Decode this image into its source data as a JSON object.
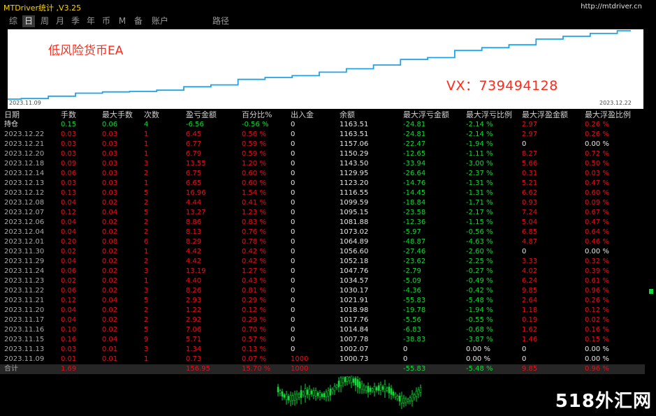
{
  "app": {
    "title": "MTDriver统计 ,V3.25",
    "url": "http://mtdriver.cn"
  },
  "periods": [
    "综",
    "日",
    "周",
    "月",
    "季",
    "年",
    "币",
    "M",
    "备",
    "账户",
    "路径"
  ],
  "active_period": "日",
  "chart": {
    "title": "低风险货币EA",
    "contact": "VX：739494128",
    "start_date": "2023.11.09",
    "end_date": "2023.12.22",
    "line_color": "#1fa3e8",
    "equity_series": [
      1000.73,
      1002.07,
      1007.78,
      1014.84,
      1017.76,
      1018.98,
      1021.91,
      1030.17,
      1034.57,
      1047.76,
      1052.18,
      1056.6,
      1064.89,
      1073.02,
      1081.88,
      1095.15,
      1099.59,
      1116.55,
      1123.2,
      1129.95,
      1143.5,
      1150.29,
      1157.06,
      1163.51
    ]
  },
  "table": {
    "headers": [
      "日期",
      "手数",
      "最大手数",
      "次数",
      "盈亏金额",
      "百分比%",
      "出入金",
      "余额",
      "最大浮亏金额",
      "最大浮亏比例",
      "最大浮盈金额",
      "最大浮盈比例"
    ],
    "hold": [
      "持仓",
      "0.15",
      "0.06",
      "4",
      "-6.56",
      "-0.56 %",
      "0",
      "1163.51",
      "-24.81",
      "-2.14 %",
      "2.97",
      "0.26 %"
    ],
    "rows": [
      [
        "2023.12.22",
        "0.03",
        "0.03",
        "1",
        "6.45",
        "0.56 %",
        "0",
        "1163.51",
        "-24.81",
        "-2.14 %",
        "2.97",
        "0.26 %"
      ],
      [
        "2023.12.21",
        "0.03",
        "0.03",
        "1",
        "6.77",
        "0.59 %",
        "0",
        "1157.06",
        "-22.47",
        "-1.94 %",
        "0",
        "0.00 %"
      ],
      [
        "2023.12.20",
        "0.03",
        "0.03",
        "1",
        "6.79",
        "0.59 %",
        "0",
        "1150.29",
        "-12.65",
        "-1.11 %",
        "8.27",
        "0.72 %"
      ],
      [
        "2023.12.18",
        "0.09",
        "0.03",
        "3",
        "13.55",
        "1.20 %",
        "0",
        "1143.50",
        "-33.94",
        "-3.00 %",
        "5.66",
        "0.50 %"
      ],
      [
        "2023.12.14",
        "0.06",
        "0.03",
        "2",
        "6.75",
        "0.60 %",
        "0",
        "1129.95",
        "-26.64",
        "-2.37 %",
        "0.31",
        "0.03 %"
      ],
      [
        "2023.12.13",
        "0.03",
        "0.03",
        "1",
        "6.65",
        "0.60 %",
        "0",
        "1123.20",
        "-14.76",
        "-1.31 %",
        "5.21",
        "0.47 %"
      ],
      [
        "2023.12.12",
        "0.13",
        "0.03",
        "5",
        "16.96",
        "1.54 %",
        "0",
        "1116.55",
        "-14.45",
        "-1.31 %",
        "6.62",
        "0.60 %"
      ],
      [
        "2023.12.08",
        "0.04",
        "0.02",
        "2",
        "4.44",
        "0.41 %",
        "0",
        "1099.59",
        "-18.84",
        "-1.71 %",
        "0.93",
        "0.09 %"
      ],
      [
        "2023.12.07",
        "0.12",
        "0.04",
        "5",
        "13.27",
        "1.23 %",
        "0",
        "1095.15",
        "-23.58",
        "-2.17 %",
        "7.24",
        "0.67 %"
      ],
      [
        "2023.12.06",
        "0.04",
        "0.02",
        "2",
        "8.86",
        "0.83 %",
        "0",
        "1081.88",
        "-12.36",
        "-1.15 %",
        "5.04",
        "0.47 %"
      ],
      [
        "2023.12.04",
        "0.04",
        "0.02",
        "2",
        "8.13",
        "0.76 %",
        "0",
        "1073.02",
        "-5.97",
        "-0.56 %",
        "6.85",
        "0.64 %"
      ],
      [
        "2023.12.01",
        "0.20",
        "0.08",
        "6",
        "8.29",
        "0.78 %",
        "0",
        "1064.89",
        "-48.87",
        "-4.63 %",
        "4.87",
        "0.46 %"
      ],
      [
        "2023.11.30",
        "0.02",
        "0.02",
        "1",
        "4.42",
        "0.42 %",
        "0",
        "1056.60",
        "-27.46",
        "-2.60 %",
        "0",
        "0.00 %"
      ],
      [
        "2023.11.29",
        "0.04",
        "0.02",
        "2",
        "4.42",
        "0.42 %",
        "0",
        "1052.18",
        "-23.62",
        "-2.25 %",
        "3.33",
        "0.32 %"
      ],
      [
        "2023.11.24",
        "0.06",
        "0.02",
        "3",
        "13.19",
        "1.27 %",
        "0",
        "1047.76",
        "-2.79",
        "-0.27 %",
        "4.02",
        "0.39 %"
      ],
      [
        "2023.11.23",
        "0.02",
        "0.02",
        "1",
        "4.40",
        "0.43 %",
        "0",
        "1034.57",
        "-5.09",
        "-0.49 %",
        "6.24",
        "0.61 %"
      ],
      [
        "2023.11.22",
        "0.06",
        "0.02",
        "3",
        "8.26",
        "0.81 %",
        "0",
        "1030.17",
        "-4.36",
        "-0.42 %",
        "9.85",
        "0.96 %"
      ],
      [
        "2023.11.21",
        "0.12",
        "0.04",
        "5",
        "2.93",
        "0.29 %",
        "0",
        "1021.91",
        "-55.83",
        "-5.48 %",
        "2.64",
        "0.26 %"
      ],
      [
        "2023.11.20",
        "0.04",
        "0.02",
        "2",
        "1.22",
        "0.12 %",
        "0",
        "1018.98",
        "-19.78",
        "-1.94 %",
        "1.18",
        "0.12 %"
      ],
      [
        "2023.11.17",
        "0.04",
        "0.02",
        "2",
        "2.92",
        "0.29 %",
        "0",
        "1017.76",
        "-5.56",
        "-0.55 %",
        "0.19",
        "0.02 %"
      ],
      [
        "2023.11.16",
        "0.10",
        "0.02",
        "5",
        "7.06",
        "0.70 %",
        "0",
        "1014.84",
        "-6.83",
        "-0.68 %",
        "1.62",
        "0.16 %"
      ],
      [
        "2023.11.15",
        "0.16",
        "0.04",
        "9",
        "5.71",
        "0.57 %",
        "0",
        "1007.78",
        "-38.83",
        "-3.87 %",
        "1.46",
        "0.15 %"
      ],
      [
        "2023.11.13",
        "0.03",
        "0.01",
        "3",
        "1.34",
        "0.13 %",
        "0",
        "1002.07",
        "0",
        "0.00 %",
        "0",
        "0.00 %"
      ],
      [
        "2023.11.09",
        "0.01",
        "0.01",
        "1",
        "0.73",
        "0.07 %",
        "1000",
        "1000.73",
        "0",
        "0.00 %",
        "0",
        "0.00 %"
      ]
    ],
    "total": [
      "合计",
      "1.69",
      "",
      "",
      "156.95",
      "15.70 %",
      "1000",
      "",
      "-55.83",
      "-5.48 %",
      "9.85",
      "0.96 %"
    ]
  },
  "watermark": "518外汇网",
  "colors": {
    "positive": "#e8101a",
    "negative": "#12d838",
    "period_active_bg": "#3a3a3a"
  }
}
